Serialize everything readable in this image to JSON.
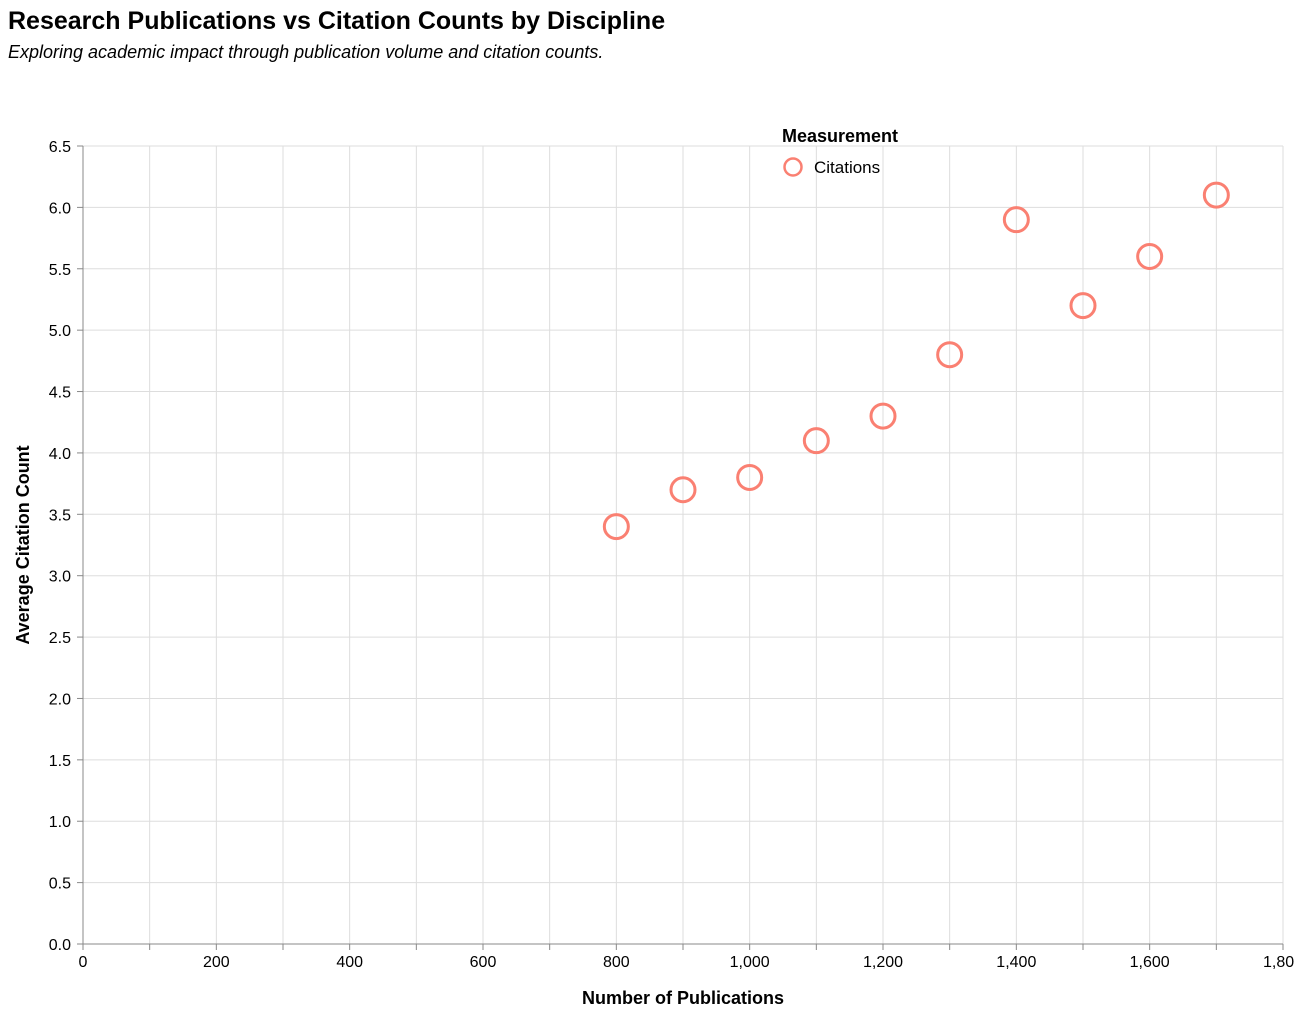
{
  "chart_data": {
    "type": "scatter",
    "title": "Research Publications vs Citation Counts by Discipline",
    "subtitle": "Exploring academic impact through publication volume and citation counts.",
    "xlabel": "Number of Publications",
    "ylabel": "Average Citation Count",
    "xlim": [
      0,
      1800
    ],
    "ylim": [
      0,
      6.5
    ],
    "x_ticks": [
      0,
      200,
      400,
      600,
      800,
      1000,
      1200,
      1400,
      1600,
      1800
    ],
    "x_tick_labels": [
      "0",
      "200",
      "400",
      "600",
      "800",
      "1,000",
      "1,200",
      "1,400",
      "1,600",
      "1,800"
    ],
    "y_ticks": [
      0.0,
      0.5,
      1.0,
      1.5,
      2.0,
      2.5,
      3.0,
      3.5,
      4.0,
      4.5,
      5.0,
      5.5,
      6.0,
      6.5
    ],
    "y_tick_labels": [
      "0.0",
      "0.5",
      "1.0",
      "1.5",
      "2.0",
      "2.5",
      "3.0",
      "3.5",
      "4.0",
      "4.5",
      "5.0",
      "5.5",
      "6.0",
      "6.5"
    ],
    "grid": true,
    "legend": {
      "title": "Measurement",
      "placement": "top-right",
      "entries": [
        "Citations"
      ]
    },
    "series": [
      {
        "name": "Citations",
        "color": "#fa8072",
        "points": [
          {
            "x": 800,
            "y": 3.4
          },
          {
            "x": 900,
            "y": 3.7
          },
          {
            "x": 1000,
            "y": 3.8
          },
          {
            "x": 1100,
            "y": 4.1
          },
          {
            "x": 1200,
            "y": 4.3
          },
          {
            "x": 1300,
            "y": 4.8
          },
          {
            "x": 1400,
            "y": 5.9
          },
          {
            "x": 1500,
            "y": 5.2
          },
          {
            "x": 1600,
            "y": 5.6
          },
          {
            "x": 1700,
            "y": 6.1
          }
        ]
      }
    ]
  }
}
